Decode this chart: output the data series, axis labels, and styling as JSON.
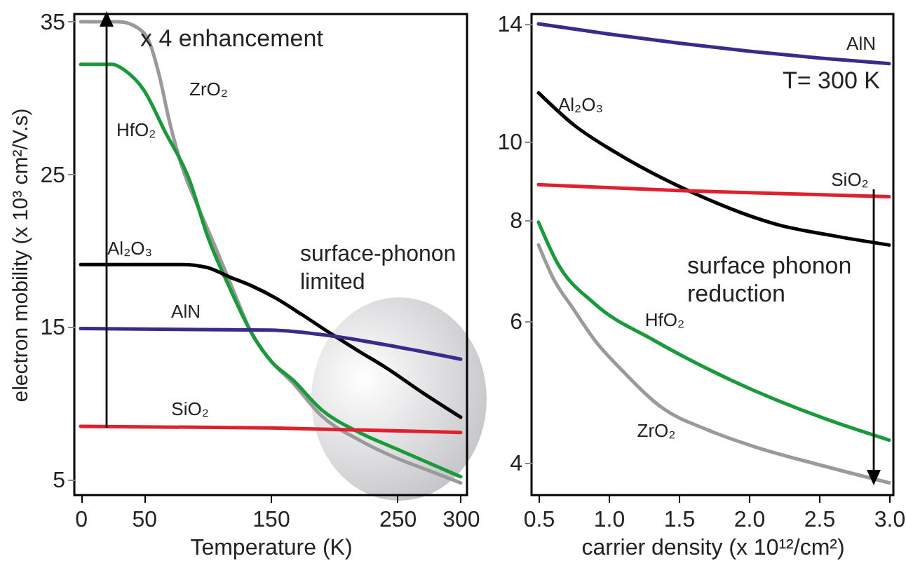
{
  "chart_data": [
    {
      "type": "line",
      "xlabel": "Temperature (K)",
      "ylabel": "electron mobility (x 10³ cm²/V.s)",
      "xlim": [
        -5,
        305
      ],
      "ylim": [
        4,
        35.5
      ],
      "xticks": [
        0,
        50,
        150,
        250,
        300
      ],
      "yticks": [
        5,
        15,
        25,
        35
      ],
      "annotations": [
        "x 4 enhancement",
        "surface-phonon limited"
      ],
      "series": [
        {
          "name": "ZrO₂",
          "color": "#9a9a9a",
          "x": [
            0,
            30,
            45,
            55,
            62,
            70,
            80,
            92,
            105,
            120,
            135,
            150,
            168,
            190,
            220,
            250,
            275,
            300
          ],
          "values": [
            35,
            35,
            34.6,
            33.5,
            31.5,
            28.5,
            25.5,
            23,
            20.5,
            17.5,
            14.6,
            12.8,
            11.3,
            9.2,
            7.6,
            6.4,
            5.6,
            4.8
          ]
        },
        {
          "name": "HfO₂",
          "color": "#1a9a3a",
          "x": [
            0,
            25,
            35,
            50,
            66,
            86,
            100,
            118,
            135,
            150,
            168,
            190,
            220,
            250,
            275,
            300
          ],
          "values": [
            32.2,
            32.2,
            31.8,
            30.5,
            27.9,
            24.6,
            21,
            17.5,
            14.6,
            12.8,
            11.5,
            9.6,
            8.1,
            7,
            6.1,
            5.2
          ]
        },
        {
          "name": "Al₂O₃",
          "color": "#000000",
          "x": [
            0,
            80,
            100,
            117,
            135,
            154,
            175,
            197,
            220,
            240,
            270,
            300
          ],
          "values": [
            19.1,
            19.1,
            18.9,
            18.3,
            17.7,
            16.9,
            15.8,
            14.6,
            13.4,
            12.4,
            10.7,
            9.1
          ]
        },
        {
          "name": "AlN",
          "color": "#3a2a8a",
          "x": [
            0,
            150,
            200,
            250,
            300
          ],
          "values": [
            14.9,
            14.8,
            14.4,
            13.7,
            12.9
          ]
        },
        {
          "name": "SiO₂",
          "color": "#e0202f",
          "x": [
            0,
            150,
            300
          ],
          "values": [
            8.5,
            8.4,
            8.1
          ]
        }
      ]
    },
    {
      "type": "line",
      "xlabel": "carrier density (x 10¹²/cm²)",
      "xlim": [
        0.45,
        3.03
      ],
      "ylim": [
        3.65,
        14.4
      ],
      "xticks": [
        0.5,
        {
          "value": 1,
          "label": "1.0"
        },
        1.5,
        {
          "value": 2,
          "label": "2.0"
        },
        2.5,
        {
          "value": 3,
          "label": "3.0"
        }
      ],
      "yticks": [
        4,
        6,
        8,
        10,
        14
      ],
      "log": "y",
      "annotations": [
        "T= 300 K",
        "surface phonon reduction"
      ],
      "series": [
        {
          "name": "AlN",
          "color": "#3a2a8a",
          "x": [
            0.5,
            1.0,
            1.5,
            2.0,
            2.5,
            3.0
          ],
          "values": [
            14,
            13.6,
            13.25,
            12.95,
            12.7,
            12.5
          ]
        },
        {
          "name": "Al₂O₃",
          "color": "#000000",
          "x": [
            0.5,
            0.75,
            1.05,
            1.6,
            2.2,
            2.6,
            3.0
          ],
          "values": [
            11.5,
            10.5,
            9.7,
            8.65,
            7.9,
            7.65,
            7.45
          ]
        },
        {
          "name": "SiO₂",
          "color": "#e0202f",
          "x": [
            0.5,
            1.5,
            3.0
          ],
          "values": [
            8.85,
            8.7,
            8.55
          ]
        },
        {
          "name": "HfO₂",
          "color": "#1a9a3a",
          "x": [
            0.5,
            0.63,
            0.9,
            1.32,
            1.89,
            2.54,
            3.0
          ],
          "values": [
            7.95,
            7.1,
            6.3,
            5.68,
            5.05,
            4.54,
            4.27
          ]
        },
        {
          "name": "ZrO₂",
          "color": "#9a9a9a",
          "x": [
            0.5,
            0.6,
            0.75,
            0.9,
            1.1,
            1.39,
            1.7,
            2.04,
            2.5,
            3.0
          ],
          "values": [
            7.45,
            6.8,
            6.2,
            5.68,
            5.2,
            4.67,
            4.4,
            4.19,
            3.98,
            3.78
          ]
        }
      ]
    }
  ]
}
